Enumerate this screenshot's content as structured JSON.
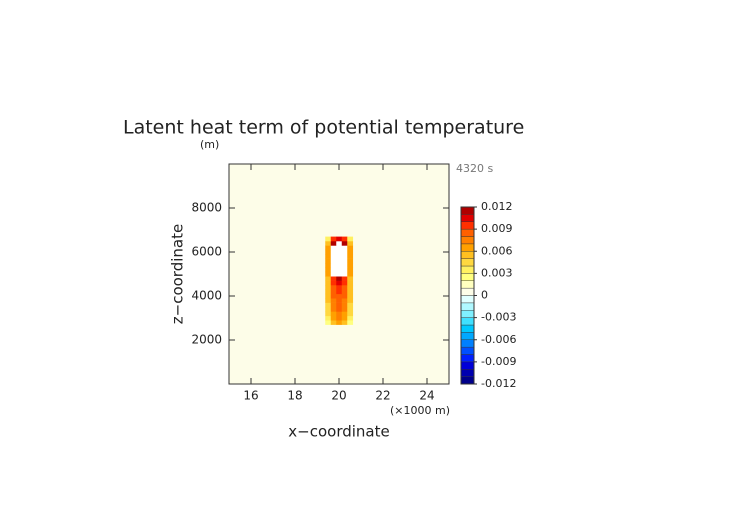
{
  "chart_data": {
    "type": "heatmap",
    "title": "Latent heat term of potential temperature",
    "y_unit": "(m)",
    "time_label": "4320 s",
    "x_unit": "(×1000 m)",
    "x_label": "x−coordinate",
    "y_label": "z−coordinate",
    "xlim": [
      15,
      25
    ],
    "ylim": [
      0,
      10000
    ],
    "xticks": [
      16,
      18,
      20,
      22,
      24
    ],
    "yticks": [
      2000,
      4000,
      6000,
      8000
    ],
    "base_value": 0,
    "x": [
      19.5,
      19.75,
      20,
      20.25,
      20.5
    ],
    "y": [
      2800,
      3000,
      3200,
      3400,
      3600,
      3800,
      4000,
      4200,
      4400,
      4600,
      4800,
      5000,
      5200,
      5400,
      5600,
      5800,
      6000,
      6200,
      6400,
      6600
    ],
    "values": [
      [
        0.002,
        0.005,
        0.006,
        0.005,
        0.002
      ],
      [
        0.003,
        0.006,
        0.007,
        0.006,
        0.003
      ],
      [
        0.004,
        0.006,
        0.007,
        0.006,
        0.004
      ],
      [
        0.004,
        0.007,
        0.008,
        0.007,
        0.004
      ],
      [
        0.004,
        0.007,
        0.008,
        0.007,
        0.004
      ],
      [
        0.005,
        0.007,
        0.008,
        0.007,
        0.005
      ],
      [
        0.005,
        0.008,
        0.008,
        0.008,
        0.005
      ],
      [
        0.005,
        0.008,
        0.009,
        0.008,
        0.005
      ],
      [
        0.005,
        0.008,
        0.009,
        0.008,
        0.005
      ],
      [
        0.005,
        0.009,
        0.01,
        0.009,
        0.005
      ],
      [
        0.005,
        0.009,
        0.011,
        0.009,
        0.005
      ],
      [
        0.006,
        0.013,
        0.014,
        0.013,
        0.006
      ],
      [
        0.006,
        0.014,
        0.015,
        0.014,
        0.006
      ],
      [
        0.006,
        0.014,
        0.015,
        0.014,
        0.006
      ],
      [
        0.006,
        0.014,
        0.015,
        0.014,
        0.006
      ],
      [
        0.006,
        0.014,
        0.015,
        0.014,
        0.006
      ],
      [
        0.006,
        0.014,
        0.015,
        0.014,
        0.006
      ],
      [
        0.006,
        0.013,
        0.014,
        0.013,
        0.006
      ],
      [
        0.005,
        0.011,
        0.012,
        0.011,
        0.005
      ],
      [
        0.003,
        0.009,
        0.01,
        0.009,
        0.003
      ]
    ],
    "colorbar": {
      "lim": [
        -0.012,
        0.012
      ],
      "ticks": [
        -0.012,
        -0.009,
        -0.006,
        -0.003,
        0,
        0.003,
        0.006,
        0.009,
        0.012
      ],
      "colors": [
        "#00008b",
        "#0000b0",
        "#0000d8",
        "#0020ff",
        "#0050ff",
        "#0080ff",
        "#00a8ff",
        "#00c8ff",
        "#40e0ff",
        "#80f0ff",
        "#b0f8ff",
        "#e0ffff",
        "#fdfde8",
        "#ffffc0",
        "#ffff80",
        "#fff060",
        "#ffd840",
        "#ffc020",
        "#ffa000",
        "#ff8000",
        "#ff6000",
        "#ff3000",
        "#e00000",
        "#b00000"
      ],
      "over_color": "#ffffff"
    }
  }
}
